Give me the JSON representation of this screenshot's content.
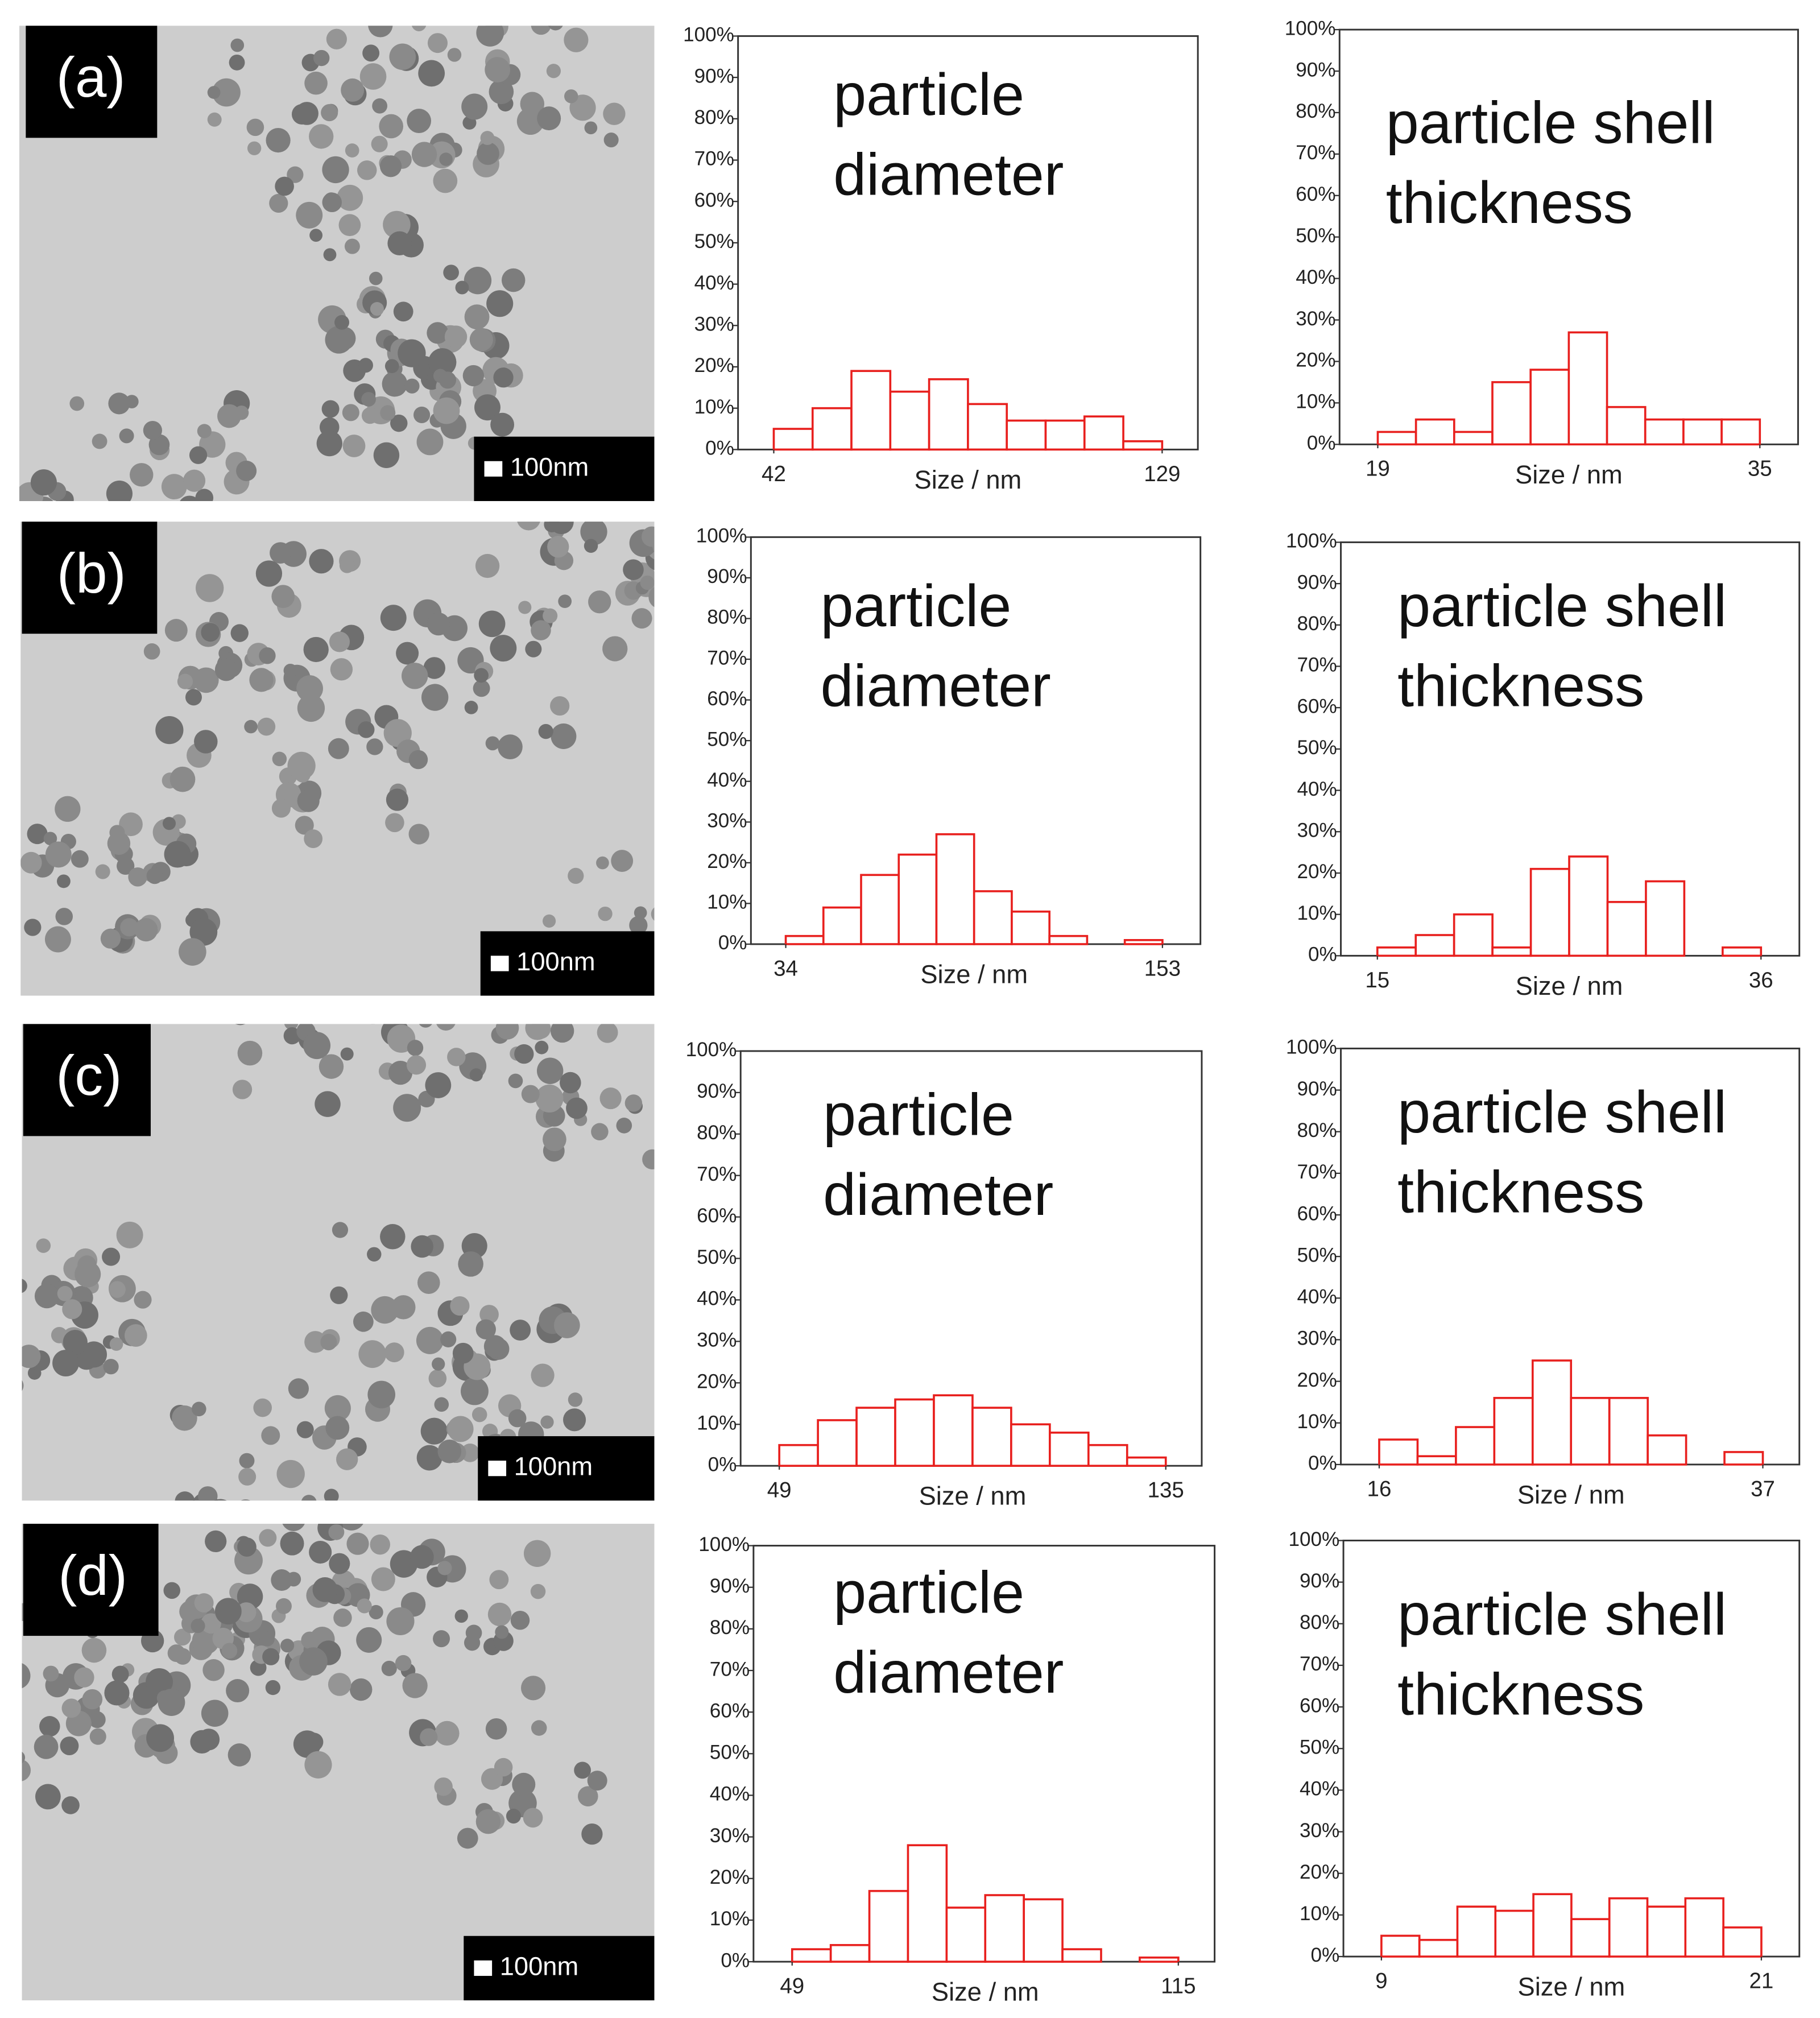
{
  "panels": [
    {
      "label": "(a)",
      "scale": "100nm"
    },
    {
      "label": "(b)",
      "scale": "100nm"
    },
    {
      "label": "(c)",
      "scale": "100nm"
    },
    {
      "label": "(d)",
      "scale": "100nm"
    }
  ],
  "chart_data": [
    {
      "type": "histogram",
      "title": [
        "particle",
        "diameter"
      ],
      "xlabel": "Size / nm",
      "color": "#e8201e",
      "bins": [
        42,
        50.7,
        59.4,
        68.1,
        76.8,
        85.5,
        94.2,
        102.9,
        111.6,
        120.3,
        129
      ],
      "values": [
        5,
        10,
        19,
        14,
        17,
        11,
        7,
        7,
        8,
        2
      ],
      "xlim": [
        34,
        137
      ],
      "xticks": [
        42,
        129
      ],
      "ylim": [
        0,
        100
      ],
      "yticks": [
        {
          "value": 0,
          "label": "0%"
        },
        {
          "value": 10,
          "label": "10%"
        },
        {
          "value": 20,
          "label": "20%"
        },
        {
          "value": 30,
          "label": "30%"
        },
        {
          "value": 40,
          "label": "40%"
        },
        {
          "value": 50,
          "label": "50%"
        },
        {
          "value": 60,
          "label": "60%"
        },
        {
          "value": 70,
          "label": "70%"
        },
        {
          "value": 80,
          "label": "80%"
        },
        {
          "value": 90,
          "label": "90%"
        },
        {
          "value": 100,
          "label": "100%"
        }
      ]
    },
    {
      "type": "histogram",
      "title": [
        "particle shell",
        "thickness"
      ],
      "xlabel": "Size / nm",
      "color": "#e8201e",
      "bins": [
        19,
        20.6,
        22.2,
        23.8,
        25.4,
        27,
        28.6,
        30.2,
        31.8,
        33.4,
        35
      ],
      "values": [
        3,
        6,
        3,
        15,
        18,
        27,
        9,
        6,
        6,
        6
      ],
      "xlim": [
        17.4,
        36.6
      ],
      "xticks": [
        19,
        35
      ],
      "ylim": [
        0,
        100
      ],
      "yticks": [
        {
          "value": 0,
          "label": "0%"
        },
        {
          "value": 10,
          "label": "10%"
        },
        {
          "value": 20,
          "label": "20%"
        },
        {
          "value": 30,
          "label": "30%"
        },
        {
          "value": 40,
          "label": "40%"
        },
        {
          "value": 50,
          "label": "50%"
        },
        {
          "value": 60,
          "label": "60%"
        },
        {
          "value": 70,
          "label": "70%"
        },
        {
          "value": 80,
          "label": "80%"
        },
        {
          "value": 90,
          "label": "90%"
        },
        {
          "value": 100,
          "label": "100%"
        }
      ]
    },
    {
      "type": "histogram",
      "title": [
        "particle",
        "diameter"
      ],
      "xlabel": "Size / nm",
      "color": "#e8201e",
      "bins": [
        34,
        45.9,
        57.8,
        69.7,
        81.6,
        93.5,
        105.4,
        117.3,
        129.2,
        141.1,
        153
      ],
      "values": [
        2,
        9,
        17,
        22,
        27,
        13,
        8,
        2,
        0,
        1
      ],
      "xlim": [
        23,
        165
      ],
      "xticks": [
        34,
        153
      ],
      "ylim": [
        0,
        100
      ],
      "yticks": [
        {
          "value": 0,
          "label": "0%"
        },
        {
          "value": 10,
          "label": "10%"
        },
        {
          "value": 20,
          "label": "20%"
        },
        {
          "value": 30,
          "label": "30%"
        },
        {
          "value": 40,
          "label": "40%"
        },
        {
          "value": 50,
          "label": "50%"
        },
        {
          "value": 60,
          "label": "60%"
        },
        {
          "value": 70,
          "label": "70%"
        },
        {
          "value": 80,
          "label": "80%"
        },
        {
          "value": 90,
          "label": "90%"
        },
        {
          "value": 100,
          "label": "100%"
        }
      ]
    },
    {
      "type": "histogram",
      "title": [
        "particle shell",
        "thickness"
      ],
      "xlabel": "Size / nm",
      "color": "#e8201e",
      "bins": [
        15,
        17.1,
        19.2,
        21.3,
        23.4,
        25.5,
        27.6,
        29.7,
        31.8,
        33.9,
        36
      ],
      "values": [
        2,
        5,
        10,
        2,
        21,
        24,
        13,
        18,
        0,
        2
      ],
      "xlim": [
        13,
        38.1
      ],
      "xticks": [
        15,
        36
      ],
      "ylim": [
        0,
        100
      ],
      "yticks": [
        {
          "value": 0,
          "label": "0%"
        },
        {
          "value": 10,
          "label": "10%"
        },
        {
          "value": 20,
          "label": "20%"
        },
        {
          "value": 30,
          "label": "30%"
        },
        {
          "value": 40,
          "label": "40%"
        },
        {
          "value": 50,
          "label": "50%"
        },
        {
          "value": 60,
          "label": "60%"
        },
        {
          "value": 70,
          "label": "70%"
        },
        {
          "value": 80,
          "label": "80%"
        },
        {
          "value": 90,
          "label": "90%"
        },
        {
          "value": 100,
          "label": "100%"
        }
      ]
    },
    {
      "type": "histogram",
      "title": [
        "particle",
        "diameter"
      ],
      "xlabel": "Size / nm",
      "color": "#e8201e",
      "bins": [
        49,
        57.6,
        66.2,
        74.8,
        83.4,
        92,
        100.6,
        109.2,
        117.8,
        126.4,
        135
      ],
      "values": [
        5,
        11,
        14,
        16,
        17,
        14,
        10,
        8,
        5,
        2
      ],
      "xlim": [
        40.4,
        143
      ],
      "xticks": [
        49,
        135
      ],
      "ylim": [
        0,
        100
      ],
      "yticks": [
        {
          "value": 0,
          "label": "0%"
        },
        {
          "value": 10,
          "label": "10%"
        },
        {
          "value": 20,
          "label": "20%"
        },
        {
          "value": 30,
          "label": "30%"
        },
        {
          "value": 40,
          "label": "40%"
        },
        {
          "value": 50,
          "label": "50%"
        },
        {
          "value": 60,
          "label": "60%"
        },
        {
          "value": 70,
          "label": "70%"
        },
        {
          "value": 80,
          "label": "80%"
        },
        {
          "value": 90,
          "label": "90%"
        },
        {
          "value": 100,
          "label": "100%"
        }
      ]
    },
    {
      "type": "histogram",
      "title": [
        "particle shell",
        "thickness"
      ],
      "xlabel": "Size / nm",
      "color": "#e8201e",
      "bins": [
        16,
        18.1,
        20.2,
        22.3,
        24.4,
        26.5,
        28.6,
        30.7,
        32.8,
        34.9,
        37
      ],
      "values": [
        6,
        2,
        9,
        16,
        25,
        16,
        16,
        7,
        0,
        3
      ],
      "xlim": [
        13.9,
        39
      ],
      "xticks": [
        16,
        37
      ],
      "ylim": [
        0,
        100
      ],
      "yticks": [
        {
          "value": 0,
          "label": "0%"
        },
        {
          "value": 10,
          "label": "10%"
        },
        {
          "value": 20,
          "label": "20%"
        },
        {
          "value": 30,
          "label": "30%"
        },
        {
          "value": 40,
          "label": "40%"
        },
        {
          "value": 50,
          "label": "50%"
        },
        {
          "value": 60,
          "label": "60%"
        },
        {
          "value": 70,
          "label": "70%"
        },
        {
          "value": 80,
          "label": "80%"
        },
        {
          "value": 90,
          "label": "90%"
        },
        {
          "value": 100,
          "label": "100%"
        }
      ]
    },
    {
      "type": "histogram",
      "title": [
        "particle",
        "diameter"
      ],
      "xlabel": "Size / nm",
      "color": "#e8201e",
      "bins": [
        49,
        55.6,
        62.2,
        68.8,
        75.4,
        82,
        88.6,
        95.2,
        101.8,
        108.4,
        115
      ],
      "values": [
        3,
        4,
        17,
        28,
        13,
        16,
        15,
        3,
        0,
        1
      ],
      "xlim": [
        42.4,
        121.2
      ],
      "xticks": [
        49,
        115
      ],
      "ylim": [
        0,
        100
      ],
      "yticks": [
        {
          "value": 0,
          "label": "0%"
        },
        {
          "value": 10,
          "label": "10%"
        },
        {
          "value": 20,
          "label": "20%"
        },
        {
          "value": 30,
          "label": "30%"
        },
        {
          "value": 40,
          "label": "40%"
        },
        {
          "value": 50,
          "label": "50%"
        },
        {
          "value": 60,
          "label": "60%"
        },
        {
          "value": 70,
          "label": "70%"
        },
        {
          "value": 80,
          "label": "80%"
        },
        {
          "value": 90,
          "label": "90%"
        },
        {
          "value": 100,
          "label": "100%"
        }
      ]
    },
    {
      "type": "histogram",
      "title": [
        "particle shell",
        "thickness"
      ],
      "xlabel": "Size / nm",
      "color": "#e8201e",
      "bins": [
        9,
        10.2,
        11.4,
        12.6,
        13.8,
        15,
        16.2,
        17.4,
        18.6,
        19.8,
        21
      ],
      "values": [
        5,
        4,
        12,
        11,
        15,
        9,
        14,
        12,
        14,
        7
      ],
      "xlim": [
        7.8,
        22.2
      ],
      "xticks": [
        9,
        21
      ],
      "ylim": [
        0,
        100
      ],
      "yticks": [
        {
          "value": 0,
          "label": "0%"
        },
        {
          "value": 10,
          "label": "10%"
        },
        {
          "value": 20,
          "label": "20%"
        },
        {
          "value": 30,
          "label": "30%"
        },
        {
          "value": 40,
          "label": "40%"
        },
        {
          "value": 50,
          "label": "50%"
        },
        {
          "value": 60,
          "label": "60%"
        },
        {
          "value": 70,
          "label": "70%"
        },
        {
          "value": 80,
          "label": "80%"
        },
        {
          "value": 90,
          "label": "90%"
        },
        {
          "value": 100,
          "label": "100%"
        }
      ]
    }
  ]
}
